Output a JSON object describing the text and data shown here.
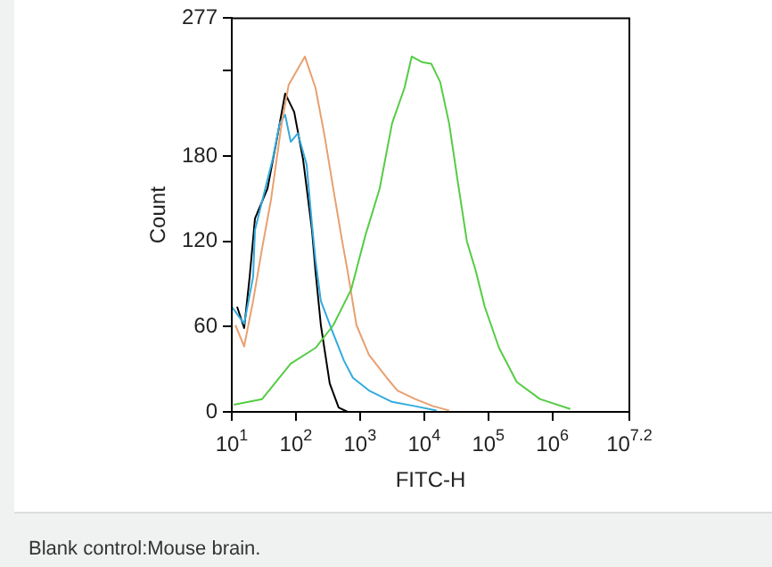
{
  "chart_data": {
    "type": "line",
    "xlabel": "FITC-H",
    "ylabel": "Count",
    "annotations": [
      "Blank control:Mouse brain."
    ],
    "log": "x",
    "grid": false,
    "legend": false,
    "marker": "none",
    "line_style": "solid",
    "xlim": [
      10,
      15848932
    ],
    "xticks": [
      {
        "value": 10,
        "label": "10$^{1}$"
      },
      {
        "value": 100,
        "label": "10$^{2}$"
      },
      {
        "value": 1000,
        "label": "10$^{3}$"
      },
      {
        "value": 10000,
        "label": "10$^{4}$"
      },
      {
        "value": 100000,
        "label": "10$^{5}$"
      },
      {
        "value": 1000000,
        "label": "10$^{6}$"
      },
      {
        "value": 15848932,
        "label": "10$^{7.2}$"
      }
    ],
    "ylim": [
      0,
      277
    ],
    "yticks": [
      0,
      60,
      120,
      180,
      {
        "value": 240,
        "label": null
      },
      277
    ],
    "series": [
      {
        "color": "#55cc44",
        "x": [
          10.7,
          29.7,
          83,
          202,
          383,
          726,
          1210,
          2020,
          3160,
          4940,
          6390,
          9380,
          12900,
          17800,
          24500,
          33700,
          46400,
          64000,
          88000,
          147000,
          278000,
          640000,
          1900000
        ],
        "values": [
          5,
          9,
          34,
          45,
          61,
          86,
          124,
          157,
          203,
          228,
          250,
          246,
          245,
          232,
          203,
          161,
          120,
          99,
          74,
          45,
          21,
          9,
          2
        ]
      },
      {
        "color": "#e8a070",
        "x": [
          11.4,
          15.6,
          21.5,
          29.7,
          40.8,
          60,
          77,
          100,
          138,
          202,
          278,
          383,
          527,
          640,
          880,
          1380,
          2610,
          3830,
          7260,
          13800,
          24500
        ],
        "values": [
          61,
          46,
          78,
          115,
          149,
          203,
          230,
          239,
          250,
          228,
          195,
          157,
          120,
          99,
          61,
          40,
          24,
          15,
          9,
          4,
          1
        ]
      },
      {
        "color": "#33aadd",
        "x": [
          10,
          15.6,
          21.5,
          23,
          31.6,
          43.5,
          56,
          68,
          83,
          107,
          147,
          178,
          202,
          245,
          383,
          562,
          774,
          1380,
          3160,
          7260,
          15600
        ],
        "values": [
          74,
          62,
          95,
          128,
          153,
          178,
          203,
          209,
          190,
          196,
          174,
          132,
          107,
          78,
          55,
          36,
          24,
          15,
          7,
          4,
          1
        ]
      },
      {
        "color": "#000000",
        "x": [
          12.1,
          15.6,
          19,
          23,
          36,
          49.5,
          68,
          94,
          129,
          178,
          202,
          245,
          337,
          464,
          640
        ],
        "values": [
          74,
          59,
          95,
          136,
          157,
          190,
          224,
          211,
          178,
          128,
          99,
          61,
          20,
          3,
          0
        ]
      }
    ]
  }
}
